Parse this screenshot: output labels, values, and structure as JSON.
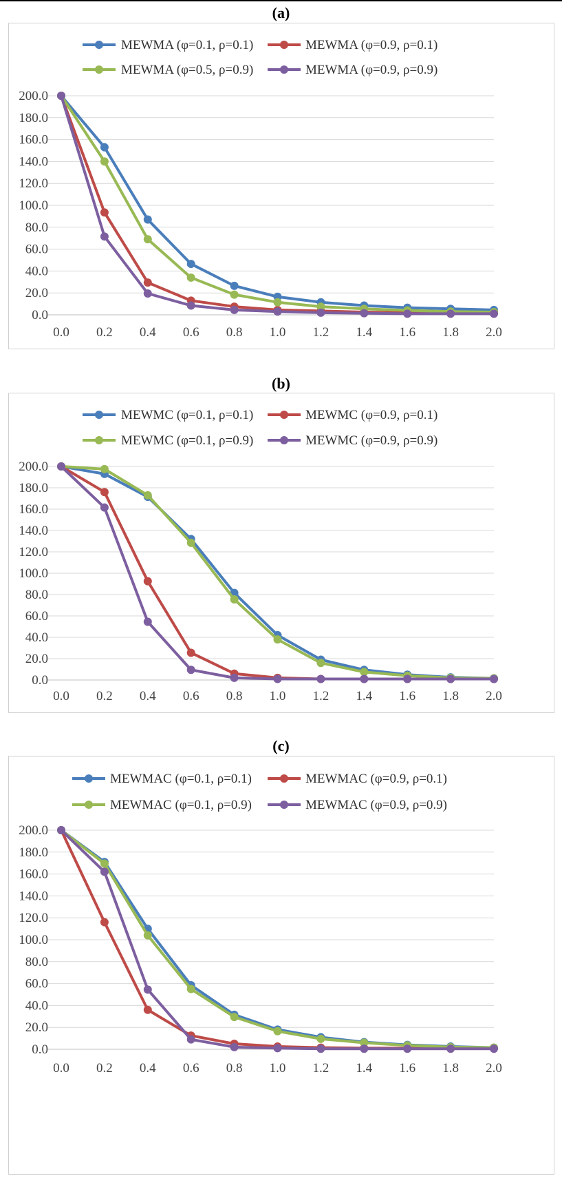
{
  "chart_data": [
    {
      "type": "line",
      "title": "(a)",
      "xlabel": "",
      "ylabel": "",
      "x": [
        0.0,
        0.2,
        0.4,
        0.6,
        0.8,
        1.0,
        1.2,
        1.4,
        1.6,
        1.8,
        2.0
      ],
      "x_tick_labels": [
        "0.0",
        "0.2",
        "0.4",
        "0.6",
        "0.8",
        "1.0",
        "1.2",
        "1.4",
        "1.6",
        "1.8",
        "2.0"
      ],
      "y_tick_labels": [
        "0.0",
        "20.0",
        "40.0",
        "60.0",
        "80.0",
        "100.0",
        "120.0",
        "140.0",
        "160.0",
        "180.0",
        "200.0"
      ],
      "ylim": [
        0,
        200
      ],
      "grid": true,
      "legend_position": "top",
      "series": [
        {
          "name": "MEWMA (φ=0.1, ρ=0.1)",
          "color": "#4a7ebb",
          "values": [
            200,
            153,
            87,
            46.5,
            26.5,
            16.5,
            11.5,
            8.5,
            6.5,
            5.5,
            4.5
          ]
        },
        {
          "name": "MEWMA (φ=0.9, ρ=0.1)",
          "color": "#be4b48",
          "values": [
            200,
            93.5,
            29.5,
            13,
            7.5,
            4.5,
            3.5,
            2.5,
            2,
            1.5,
            1.5
          ]
        },
        {
          "name": "MEWMA (φ=0.5, ρ=0.9)",
          "color": "#98b954",
          "values": [
            200,
            140,
            69,
            34,
            18.5,
            11.5,
            7.5,
            5.5,
            4,
            3,
            2.5
          ]
        },
        {
          "name": "MEWMA (φ=0.9, ρ=0.9)",
          "color": "#7d5fa0",
          "values": [
            200,
            71.5,
            19.5,
            8.5,
            4.5,
            3,
            2,
            1.5,
            1,
            1,
            1
          ]
        }
      ]
    },
    {
      "type": "line",
      "title": "(b)",
      "xlabel": "",
      "ylabel": "",
      "x": [
        0.0,
        0.2,
        0.4,
        0.6,
        0.8,
        1.0,
        1.2,
        1.4,
        1.6,
        1.8,
        2.0
      ],
      "x_tick_labels": [
        "0.0",
        "0.2",
        "0.4",
        "0.6",
        "0.8",
        "1.0",
        "1.2",
        "1.4",
        "1.6",
        "1.8",
        "2.0"
      ],
      "y_tick_labels": [
        "0.0",
        "20.0",
        "40.0",
        "60.0",
        "80.0",
        "100.0",
        "120.0",
        "140.0",
        "160.0",
        "180.0",
        "200.0"
      ],
      "ylim": [
        0,
        200
      ],
      "grid": true,
      "legend_position": "top",
      "series": [
        {
          "name": "MEWMC (φ=0.1, ρ=0.1)",
          "color": "#4a7ebb",
          "values": [
            200,
            193,
            171.5,
            132,
            81.5,
            42,
            19,
            9.5,
            5,
            2.5,
            1.5
          ]
        },
        {
          "name": "MEWMC (φ=0.9, ρ=0.1)",
          "color": "#be4b48",
          "values": [
            200,
            176,
            92.5,
            25.5,
            6,
            2,
            1,
            1,
            1,
            1,
            1
          ]
        },
        {
          "name": "MEWMC (φ=0.1, ρ=0.9)",
          "color": "#98b954",
          "values": [
            200,
            197.5,
            173,
            128.5,
            75.5,
            38,
            16,
            7.5,
            4,
            2,
            1.5
          ]
        },
        {
          "name": "MEWMC (φ=0.9, ρ=0.9)",
          "color": "#7d5fa0",
          "values": [
            200,
            161.5,
            54.5,
            9.5,
            2,
            1,
            1,
            1,
            1,
            1,
            1
          ]
        }
      ]
    },
    {
      "type": "line",
      "title": "(c)",
      "xlabel": "",
      "ylabel": "",
      "x": [
        0.0,
        0.2,
        0.4,
        0.6,
        0.8,
        1.0,
        1.2,
        1.4,
        1.6,
        1.8,
        2.0
      ],
      "x_tick_labels": [
        "0.0",
        "0.2",
        "0.4",
        "0.6",
        "0.8",
        "1.0",
        "1.2",
        "1.4",
        "1.6",
        "1.8",
        "2.0"
      ],
      "y_tick_labels": [
        "0.0",
        "20.0",
        "40.0",
        "60.0",
        "80.0",
        "100.0",
        "120.0",
        "140.0",
        "160.0",
        "180.0",
        "200.0"
      ],
      "ylim": [
        0,
        200
      ],
      "grid": true,
      "legend_position": "top",
      "series": [
        {
          "name": "MEWMAC (φ=0.1, ρ=0.1)",
          "color": "#4a7ebb",
          "values": [
            200,
            171,
            110,
            58.5,
            31.5,
            18,
            11,
            6.5,
            4,
            2.5,
            1.5
          ]
        },
        {
          "name": "MEWMAC (φ=0.9, ρ=0.1)",
          "color": "#be4b48",
          "values": [
            200,
            116,
            36,
            12.5,
            5,
            2.5,
            1.5,
            1,
            1,
            1,
            1
          ]
        },
        {
          "name": "MEWMAC (φ=0.1, ρ=0.9)",
          "color": "#98b954",
          "values": [
            200,
            169.5,
            104,
            55,
            29.5,
            16.5,
            9.5,
            6,
            3.5,
            2,
            1.5
          ]
        },
        {
          "name": "MEWMAC (φ=0.9, ρ=0.9)",
          "color": "#7d5fa0",
          "values": [
            200,
            162,
            54.5,
            9,
            2,
            1,
            0.5,
            0.5,
            0.5,
            0.5,
            0.5
          ]
        }
      ]
    }
  ]
}
